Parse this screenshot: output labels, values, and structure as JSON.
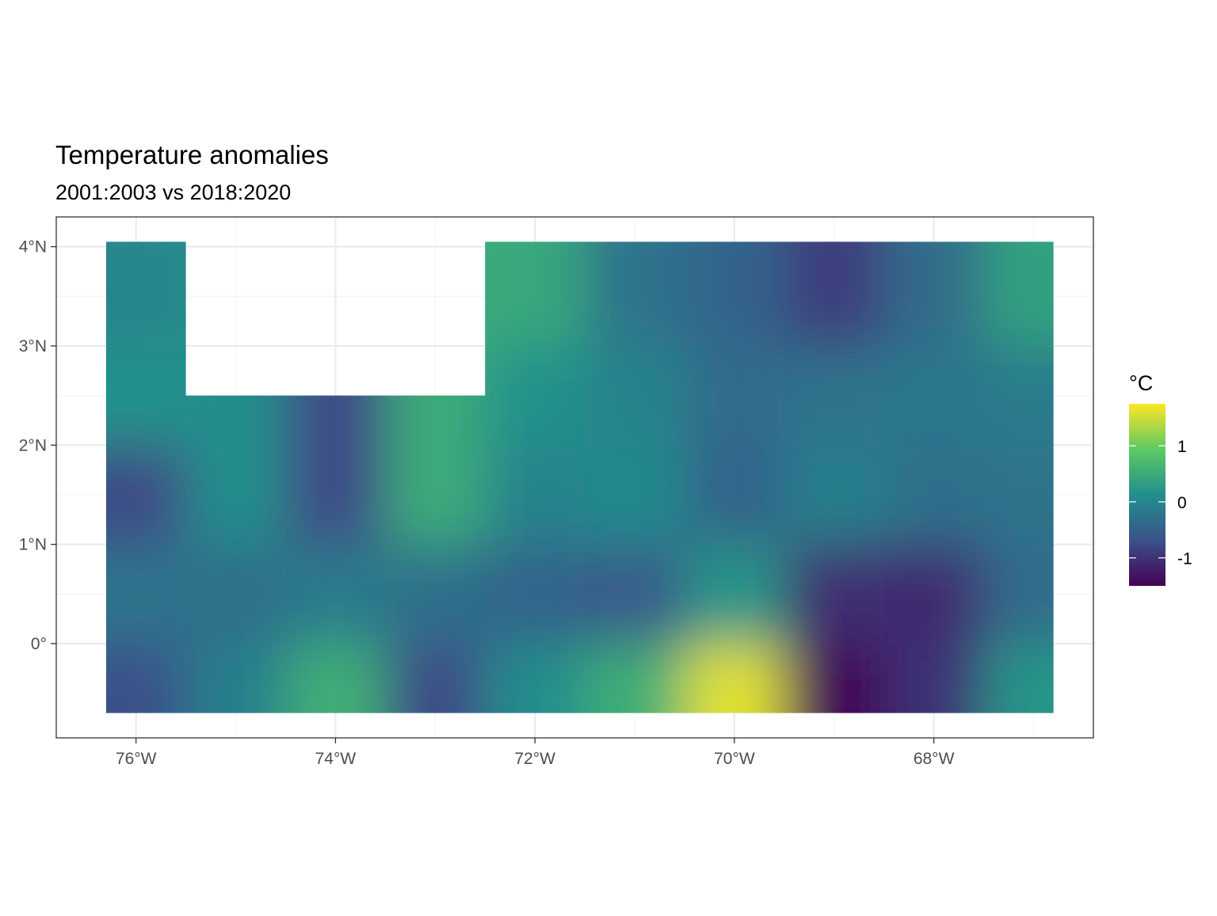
{
  "chart_data": {
    "type": "heatmap",
    "title": "Temperature anomalies",
    "subtitle": "2001:2003 vs 2018:2020",
    "legend": {
      "title": "°C",
      "position": "right",
      "breaks": [
        1,
        0,
        -1
      ],
      "break_labels": [
        "1",
        "0",
        "-1"
      ],
      "limits": [
        -1.5,
        1.75
      ],
      "palette": "viridis",
      "colors": [
        "#440154",
        "#3b528b",
        "#21908c",
        "#5ec962",
        "#fde725"
      ]
    },
    "x_axis": {
      "ticks": [
        -76,
        -74,
        -72,
        -70,
        -68
      ],
      "tick_labels": [
        "76°W",
        "74°W",
        "72°W",
        "70°W",
        "68°W"
      ],
      "range": [
        -76.8,
        -66.4
      ]
    },
    "y_axis": {
      "ticks": [
        0,
        1,
        2,
        3,
        4
      ],
      "tick_labels": [
        "0°",
        "1°N",
        "2°N",
        "3°N",
        "4°N"
      ],
      "range": [
        -0.95,
        4.3
      ]
    },
    "grid": true,
    "grid_cells": {
      "lon_centers": [
        -76,
        -75,
        -74,
        -73,
        -72,
        -71,
        -70,
        -69,
        -68,
        -67
      ],
      "lat_centers": [
        -0.5,
        0.5,
        1.5,
        2.5,
        3.5
      ],
      "cell_extent": {
        "lon": [
          -76.3,
          -66.8
        ],
        "lat": [
          -0.7,
          4.05
        ]
      },
      "missing_region": {
        "lon": [
          -75.5,
          -72.5
        ],
        "lat": [
          2.5,
          4.05
        ]
      },
      "values": [
        [
          -0.7,
          -0.1,
          0.55,
          -0.75,
          0.1,
          0.55,
          1.6,
          -1.45,
          -1.0,
          0.2
        ],
        [
          -0.25,
          -0.3,
          -0.15,
          -0.3,
          -0.45,
          -0.55,
          0.2,
          -1.05,
          -1.1,
          -0.35
        ],
        [
          -0.75,
          0.1,
          -0.75,
          0.5,
          -0.05,
          0.05,
          -0.45,
          -0.1,
          -0.3,
          -0.25
        ],
        [
          0.15,
          null,
          null,
          null,
          0.15,
          -0.05,
          -0.35,
          -0.25,
          -0.2,
          -0.15
        ],
        [
          0.0,
          null,
          null,
          null,
          0.45,
          -0.25,
          -0.45,
          -0.9,
          -0.35,
          0.35
        ]
      ]
    }
  }
}
